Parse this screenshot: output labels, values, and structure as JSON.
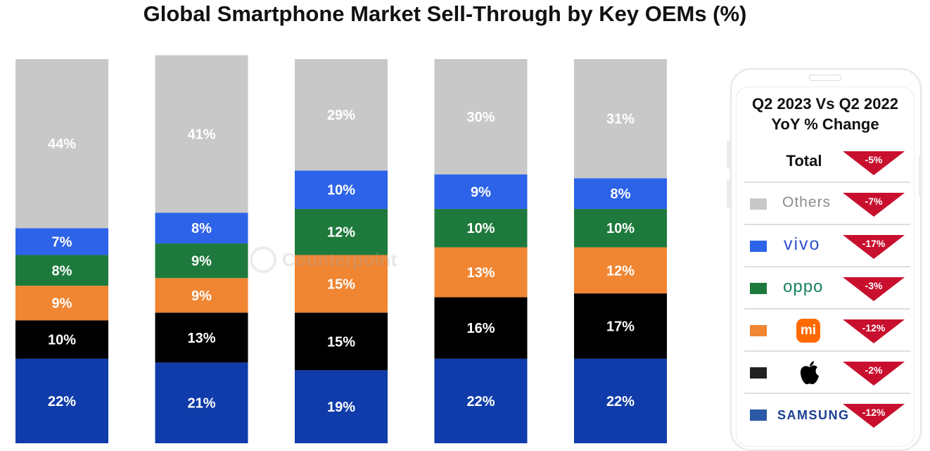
{
  "chart_data": {
    "type": "bar",
    "stacked": true,
    "title": "Global Smartphone Market Sell-Through by Key OEMs (%)",
    "categories": [
      "",
      "",
      "",
      "",
      ""
    ],
    "ylim": [
      0,
      100
    ],
    "grid": false,
    "legend_position": "right",
    "series": [
      {
        "key": "samsung",
        "values": [
          22,
          21,
          19,
          22,
          22
        ],
        "color": "#0f3caa",
        "text_color": "#ffffff"
      },
      {
        "key": "apple",
        "values": [
          10,
          13,
          15,
          16,
          17
        ],
        "color": "#000000",
        "text_color": "#ffffff"
      },
      {
        "key": "xiaomi",
        "values": [
          9,
          9,
          15,
          13,
          12
        ],
        "color": "#f08532",
        "text_color": "#ffffff"
      },
      {
        "key": "oppo",
        "values": [
          8,
          9,
          12,
          10,
          10
        ],
        "color": "#1e7a3c",
        "text_color": "#ffffff"
      },
      {
        "key": "vivo",
        "values": [
          7,
          8,
          10,
          9,
          8
        ],
        "color": "#2d63e8",
        "text_color": "#ffffff"
      },
      {
        "name": "Others",
        "key": "others",
        "values": [
          44,
          41,
          29,
          30,
          31
        ],
        "color": "#c8c8c8",
        "text_color": "#ffffff"
      }
    ]
  },
  "watermark": "Counterpoint",
  "legend": {
    "heading_line1": "Q2 2023 Vs Q2 2022",
    "heading_line2": "YoY % Change",
    "total": {
      "label": "Total",
      "change": "-5%"
    },
    "rows": [
      {
        "key": "others",
        "brand": "Others",
        "change": "-7%",
        "color": "#c8c8c8"
      },
      {
        "key": "vivo",
        "brand": "vivo",
        "change": "-17%",
        "color": "#2d63e8"
      },
      {
        "key": "oppo",
        "brand": "oppo",
        "change": "-3%",
        "color": "#1e7a3c"
      },
      {
        "key": "xiaomi",
        "brand": "mi",
        "change": "-12%",
        "color": "#f08532"
      },
      {
        "key": "apple",
        "brand": "apple-logo-icon",
        "change": "-2%",
        "color": "#222222"
      },
      {
        "key": "samsung",
        "brand": "SAMSUNG",
        "change": "-12%",
        "color": "#2c5aa8"
      }
    ],
    "arrow_color": "#c8102e"
  }
}
